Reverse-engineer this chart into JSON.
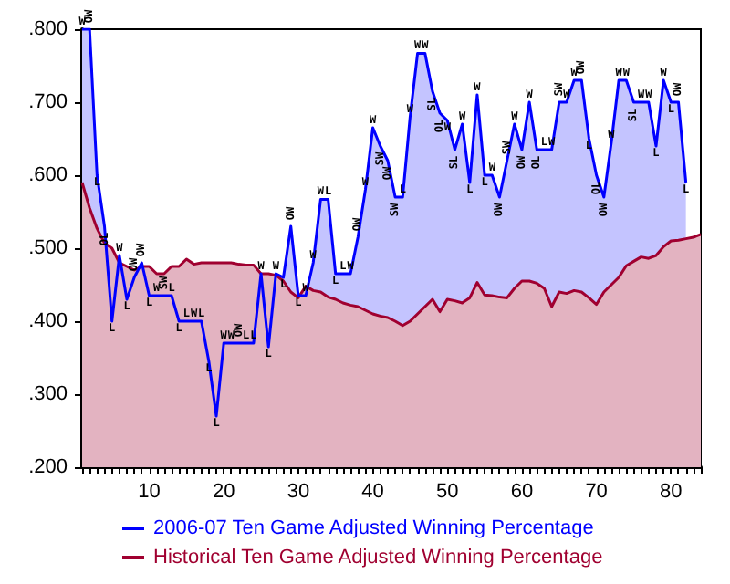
{
  "chart_data": {
    "type": "area",
    "xlim": [
      1,
      84
    ],
    "ylim": [
      0.2,
      0.8
    ],
    "xticks": [
      {
        "value": 1,
        "label": null
      },
      {
        "value": 2,
        "label": null
      },
      {
        "value": 3,
        "label": null
      },
      {
        "value": 4,
        "label": null
      },
      {
        "value": 5,
        "label": null
      },
      {
        "value": 6,
        "label": null
      },
      {
        "value": 7,
        "label": null
      },
      {
        "value": 8,
        "label": null
      },
      {
        "value": 9,
        "label": null
      },
      10,
      {
        "value": 11,
        "label": null
      },
      {
        "value": 12,
        "label": null
      },
      {
        "value": 13,
        "label": null
      },
      {
        "value": 14,
        "label": null
      },
      {
        "value": 15,
        "label": null
      },
      {
        "value": 16,
        "label": null
      },
      {
        "value": 17,
        "label": null
      },
      {
        "value": 18,
        "label": null
      },
      {
        "value": 19,
        "label": null
      },
      20,
      {
        "value": 21,
        "label": null
      },
      {
        "value": 22,
        "label": null
      },
      {
        "value": 23,
        "label": null
      },
      {
        "value": 24,
        "label": null
      },
      {
        "value": 25,
        "label": null
      },
      {
        "value": 26,
        "label": null
      },
      {
        "value": 27,
        "label": null
      },
      {
        "value": 28,
        "label": null
      },
      {
        "value": 29,
        "label": null
      },
      30,
      {
        "value": 31,
        "label": null
      },
      {
        "value": 32,
        "label": null
      },
      {
        "value": 33,
        "label": null
      },
      {
        "value": 34,
        "label": null
      },
      {
        "value": 35,
        "label": null
      },
      {
        "value": 36,
        "label": null
      },
      {
        "value": 37,
        "label": null
      },
      {
        "value": 38,
        "label": null
      },
      {
        "value": 39,
        "label": null
      },
      40,
      {
        "value": 41,
        "label": null
      },
      {
        "value": 42,
        "label": null
      },
      {
        "value": 43,
        "label": null
      },
      {
        "value": 44,
        "label": null
      },
      {
        "value": 45,
        "label": null
      },
      {
        "value": 46,
        "label": null
      },
      {
        "value": 47,
        "label": null
      },
      {
        "value": 48,
        "label": null
      },
      {
        "value": 49,
        "label": null
      },
      50,
      {
        "value": 51,
        "label": null
      },
      {
        "value": 52,
        "label": null
      },
      {
        "value": 53,
        "label": null
      },
      {
        "value": 54,
        "label": null
      },
      {
        "value": 55,
        "label": null
      },
      {
        "value": 56,
        "label": null
      },
      {
        "value": 57,
        "label": null
      },
      {
        "value": 58,
        "label": null
      },
      {
        "value": 59,
        "label": null
      },
      60,
      {
        "value": 61,
        "label": null
      },
      {
        "value": 62,
        "label": null
      },
      {
        "value": 63,
        "label": null
      },
      {
        "value": 64,
        "label": null
      },
      {
        "value": 65,
        "label": null
      },
      {
        "value": 66,
        "label": null
      },
      {
        "value": 67,
        "label": null
      },
      {
        "value": 68,
        "label": null
      },
      {
        "value": 69,
        "label": null
      },
      70,
      {
        "value": 71,
        "label": null
      },
      {
        "value": 72,
        "label": null
      },
      {
        "value": 73,
        "label": null
      },
      {
        "value": 74,
        "label": null
      },
      {
        "value": 75,
        "label": null
      },
      {
        "value": 76,
        "label": null
      },
      {
        "value": 77,
        "label": null
      },
      {
        "value": 78,
        "label": null
      },
      {
        "value": 79,
        "label": null
      },
      80,
      {
        "value": 81,
        "label": null
      },
      {
        "value": 82,
        "label": null
      },
      {
        "value": 83,
        "label": null
      },
      {
        "value": 84,
        "label": null
      }
    ],
    "yticks": [
      {
        "value": 0.2,
        "label": ".200"
      },
      {
        "value": 0.3,
        "label": ".300"
      },
      {
        "value": 0.4,
        "label": ".400"
      },
      {
        "value": 0.5,
        "label": ".500"
      },
      {
        "value": 0.6,
        "label": ".600"
      },
      {
        "value": 0.7,
        "label": ".700"
      },
      {
        "value": 0.8,
        "label": ".800"
      }
    ],
    "legend": "bottom",
    "marker": "none",
    "series": [
      {
        "name": "2006-07 Ten Game Adjusted Winning Percentage",
        "color": "#0000ff",
        "x": [
          1,
          2,
          3,
          4,
          5,
          6,
          7,
          8,
          9,
          10,
          11,
          12,
          13,
          14,
          15,
          16,
          17,
          18,
          19,
          20,
          21,
          22,
          23,
          24,
          25,
          26,
          27,
          28,
          29,
          30,
          31,
          32,
          33,
          34,
          35,
          36,
          37,
          38,
          39,
          40,
          41,
          42,
          43,
          44,
          45,
          46,
          47,
          48,
          49,
          50,
          51,
          52,
          53,
          54,
          55,
          56,
          57,
          58,
          59,
          60,
          61,
          62,
          63,
          64,
          65,
          66,
          67,
          68,
          69,
          70,
          71,
          72,
          73,
          74,
          75,
          76,
          77,
          78,
          79,
          80,
          81,
          82
        ],
        "values": [
          0.8,
          0.8,
          0.6,
          0.53,
          0.4,
          0.49,
          0.43,
          0.46,
          0.48,
          0.435,
          0.435,
          0.435,
          0.435,
          0.4,
          0.4,
          0.4,
          0.4,
          0.345,
          0.27,
          0.37,
          0.37,
          0.37,
          0.37,
          0.37,
          0.465,
          0.365,
          0.465,
          0.46,
          0.53,
          0.435,
          0.435,
          0.48,
          0.567,
          0.567,
          0.465,
          0.465,
          0.465,
          0.515,
          0.58,
          0.665,
          0.64,
          0.62,
          0.57,
          0.57,
          0.68,
          0.767,
          0.767,
          0.715,
          0.685,
          0.675,
          0.635,
          0.67,
          0.59,
          0.71,
          0.6,
          0.6,
          0.57,
          0.62,
          0.67,
          0.635,
          0.7,
          0.635,
          0.635,
          0.635,
          0.7,
          0.7,
          0.73,
          0.73,
          0.65,
          0.6,
          0.57,
          0.645,
          0.73,
          0.73,
          0.7,
          0.7,
          0.7,
          0.64,
          0.73,
          0.7,
          0.7,
          0.59
        ],
        "value_labels": [
          "W",
          "OW",
          "L",
          "OL",
          "L",
          "W",
          "L",
          "OW",
          "OW",
          "L",
          "W",
          "SW",
          "L",
          "L",
          "L",
          "W",
          "L",
          "L",
          "L",
          "W",
          "W",
          "OW",
          "L",
          "L",
          "W",
          "L",
          "W",
          "L",
          "OW",
          "L",
          "W",
          "W",
          "W",
          "L",
          "L",
          "L",
          "W",
          "OW",
          "W",
          "W",
          "SW",
          "OW",
          "SW",
          "L",
          "W",
          "W",
          "W",
          "SL",
          "OL",
          "W",
          "SL",
          "W",
          "L",
          "W",
          "L",
          "W",
          "OW",
          "SW",
          "W",
          "OW",
          "W",
          "OL",
          "L",
          "W",
          "SW",
          "W",
          "W",
          "OW",
          "L",
          "OL",
          "OW",
          "W",
          "W",
          "W",
          "SL",
          "W",
          "W",
          "L",
          "W",
          "L",
          "OW",
          "L"
        ]
      },
      {
        "name": "Historical Ten Game Adjusted Winning Percentage",
        "color": "#a00030",
        "x": [
          1,
          2,
          3,
          4,
          5,
          6,
          7,
          8,
          9,
          10,
          11,
          12,
          13,
          14,
          15,
          16,
          17,
          18,
          19,
          20,
          21,
          22,
          23,
          24,
          25,
          26,
          27,
          28,
          29,
          30,
          31,
          32,
          33,
          34,
          35,
          36,
          37,
          38,
          39,
          40,
          41,
          42,
          43,
          44,
          45,
          46,
          47,
          48,
          49,
          50,
          51,
          52,
          53,
          54,
          55,
          56,
          57,
          58,
          59,
          60,
          61,
          62,
          63,
          64,
          65,
          66,
          67,
          68,
          69,
          70,
          71,
          72,
          73,
          74,
          75,
          76,
          77,
          78,
          79,
          80,
          81,
          82,
          83,
          84
        ],
        "values": [
          0.59,
          0.555,
          0.527,
          0.507,
          0.5,
          0.48,
          0.475,
          0.47,
          0.475,
          0.475,
          0.465,
          0.465,
          0.475,
          0.475,
          0.485,
          0.478,
          0.48,
          0.48,
          0.48,
          0.48,
          0.48,
          0.478,
          0.477,
          0.477,
          0.465,
          0.465,
          0.463,
          0.455,
          0.44,
          0.432,
          0.448,
          0.442,
          0.44,
          0.433,
          0.43,
          0.425,
          0.422,
          0.42,
          0.415,
          0.41,
          0.407,
          0.405,
          0.4,
          0.394,
          0.4,
          0.41,
          0.42,
          0.43,
          0.413,
          0.43,
          0.428,
          0.425,
          0.432,
          0.453,
          0.436,
          0.435,
          0.433,
          0.432,
          0.445,
          0.455,
          0.455,
          0.452,
          0.445,
          0.42,
          0.44,
          0.438,
          0.442,
          0.44,
          0.432,
          0.423,
          0.44,
          0.45,
          0.46,
          0.476,
          0.482,
          0.488,
          0.486,
          0.49,
          0.502,
          0.51,
          0.511,
          0.513,
          0.515,
          0.519
        ]
      }
    ]
  }
}
